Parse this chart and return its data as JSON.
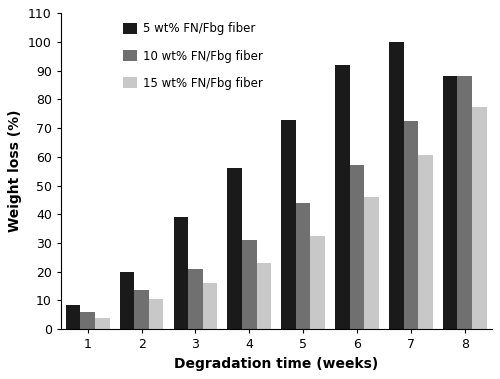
{
  "weeks": [
    1,
    2,
    3,
    4,
    5,
    6,
    7,
    8
  ],
  "series": {
    "5wt": [
      8.5,
      20,
      39,
      56,
      73,
      92,
      100,
      88
    ],
    "10wt": [
      6,
      13.5,
      21,
      31,
      44,
      57,
      72.5,
      88
    ],
    "15wt": [
      4,
      10.5,
      16,
      23,
      32.5,
      46,
      60.5,
      77.5
    ]
  },
  "colors": {
    "5wt": "#1a1a1a",
    "10wt": "#707070",
    "15wt": "#c8c8c8"
  },
  "labels": {
    "5wt": "5 wt% FN/Fbg fiber",
    "10wt": "10 wt% FN/Fbg fiber",
    "15wt": "15 wt% FN/Fbg fiber"
  },
  "xlabel": "Degradation time (weeks)",
  "ylabel": "Weight loss (%)",
  "ylim": [
    0,
    110
  ],
  "yticks": [
    0,
    10,
    20,
    30,
    40,
    50,
    60,
    70,
    80,
    90,
    100,
    110
  ],
  "xticks": [
    1,
    2,
    3,
    4,
    5,
    6,
    7,
    8
  ],
  "bar_width": 0.27,
  "background_color": "#ffffff"
}
